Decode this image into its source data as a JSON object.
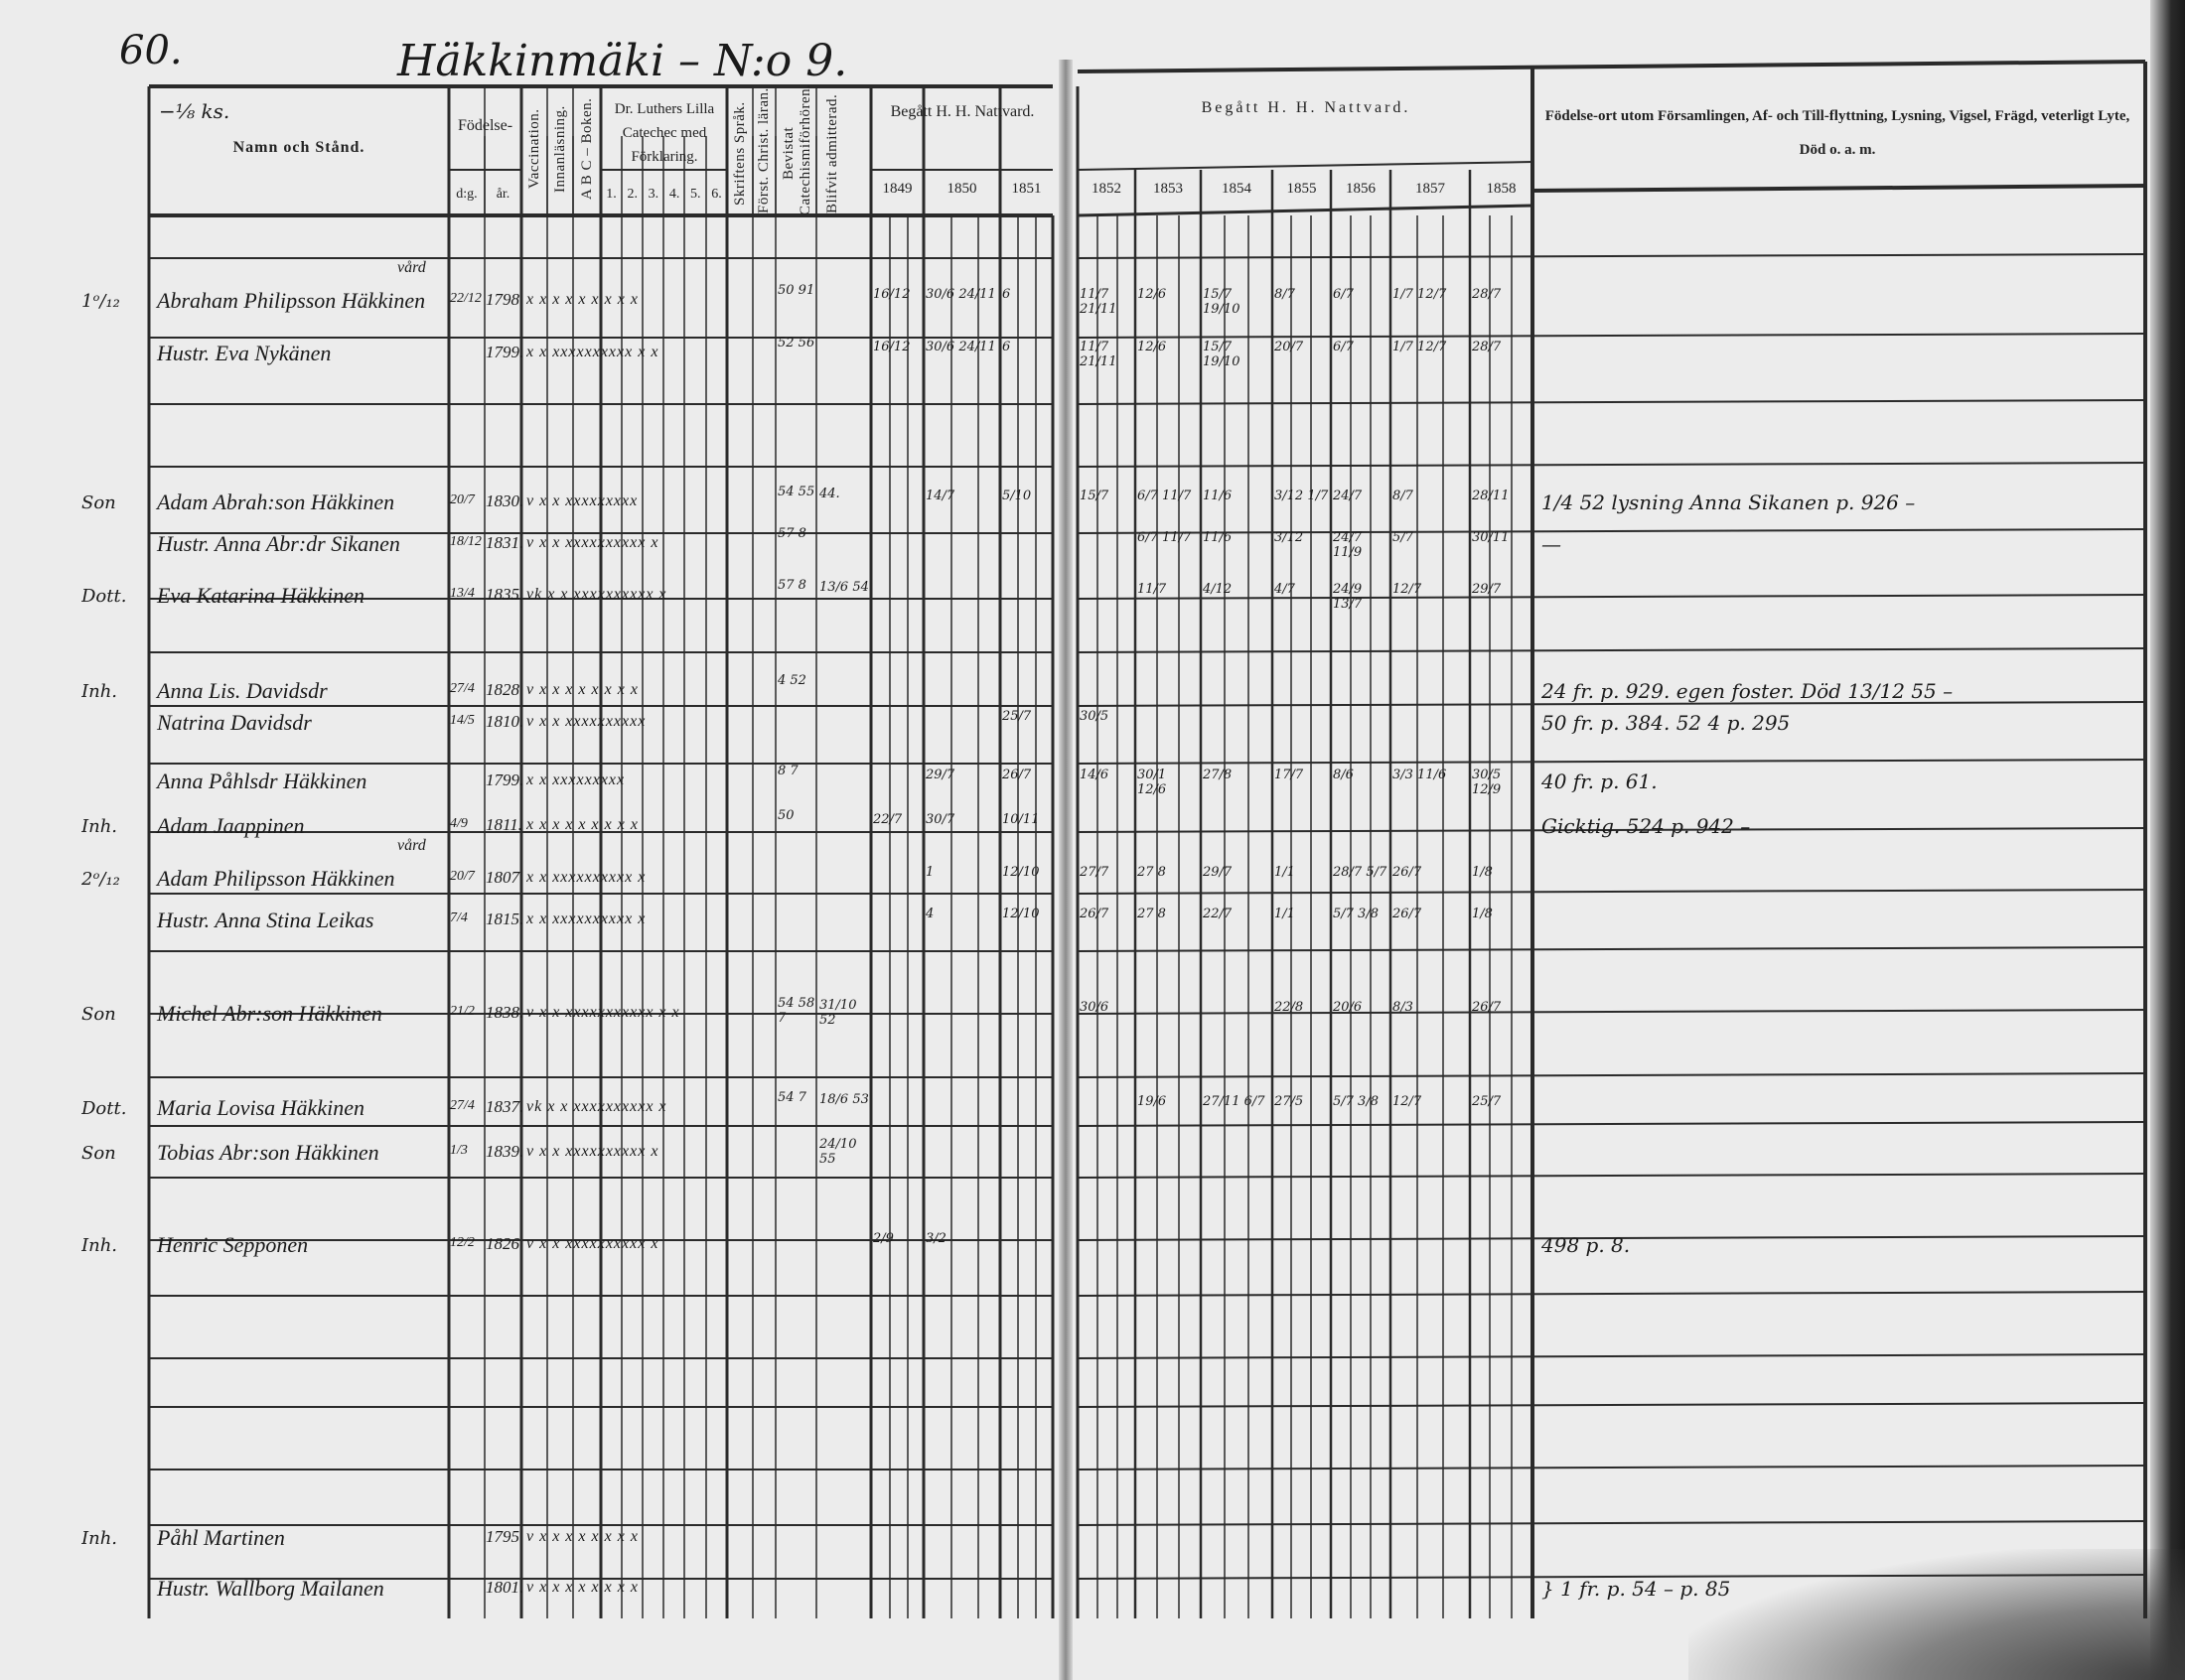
{
  "page_number": "60.",
  "title": "Häkkinmäki – N:o 9.",
  "share_note": "−⅛ ks.",
  "header": {
    "name_col": "Namn och Stånd.",
    "birth": "Födelse-",
    "birth_day": "d:g.",
    "birth_year": "år.",
    "vaccination": "Vaccination.",
    "innanlasning": "Innanläsning.",
    "abc": "A B C – Boken.",
    "catechism": "Dr. Luthers Lilla Catecheс med Förklaring.",
    "catechism_parts": [
      "1.",
      "2.",
      "3.",
      "4.",
      "5.",
      "6."
    ],
    "skriftens": "Skriftens Språk.",
    "forst": "Först. Christ. läran.",
    "bevistat": "Bevistat Catechismiförhören.",
    "blifvit": "Blifvit admitterad.",
    "communion_left": "Begått H. H. Nattvard.",
    "communion_right": "Begått H. H. Nattvard.",
    "years_left": [
      "1849",
      "1850",
      "1851"
    ],
    "years_right": [
      "1852",
      "1853",
      "1854",
      "1855",
      "1856",
      "1857",
      "1858"
    ],
    "remarks": "Födelse-ort utom Församlingen, Af- och Till-flyttning, Lysning, Vigsel, Frägd, veterligt Lyte, Död o. a. m."
  },
  "entries": [
    {
      "margin": "1ᵒ/₁₂",
      "above": "vård",
      "name": "Abraham Philipsson Häkkinen",
      "day": "22/12",
      "year": "1798",
      "marks": "x  x  x x x x x x  x",
      "exam": "50 91",
      "communion": {
        "1849": "16/12",
        "1850": "30/6  24/11",
        "1851": "6",
        "1852": "11/7 21/11",
        "1853": "12/6",
        "1854": "15/7 19/10",
        "1855": "8/7",
        "1856": "6/7",
        "1857": "1/7 12/7",
        "1858": "28/7"
      }
    },
    {
      "margin": "",
      "name": "Hustr. Eva Nykänen",
      "year": "1799.",
      "marks": "x  x xxxxxxxxxx x  x",
      "exam": "52 56",
      "communion": {
        "1849": "16/12",
        "1850": "30/6  24/11",
        "1851": "6",
        "1852": "11/7 21/11",
        "1853": "12/6",
        "1854": "15/7 19/10",
        "1855": "20/7",
        "1856": "6/7",
        "1857": "1/7 12/7",
        "1858": "28/7"
      }
    },
    {
      "margin": "Son",
      "name": "Adam Abrah:son Häkkinen",
      "day": "20/7",
      "year": "1830.",
      "marks": "v x  x xxxxxxxxx",
      "exam": "54 55",
      "admitted": "44.",
      "communion": {
        "1850": "14/7",
        "1851": "5/10",
        "1852": "15/7",
        "1853": "6/7 11/7",
        "1854": "11/6",
        "1855": "3/12 1/7",
        "1856": "24/7",
        "1857": "8/7",
        "1858": "28/11"
      },
      "remark": "1/4 52 lysning Anna Sikanen p. 926 –"
    },
    {
      "margin": "",
      "name": "Hustr. Anna Abr:dr Sikanen",
      "day": "18/12",
      "year": "1831.",
      "marks": "v x  x xxxxxxxxxx  x",
      "exam": "57 8",
      "communion": {
        "1853": "6/7 11/7",
        "1854": "11/6",
        "1855": "3/12",
        "1856": "24/7 11/9",
        "1857": "5/7",
        "1858": "30/11"
      },
      "remark": "—"
    },
    {
      "margin": "Dott.",
      "name": "Eva Katarina Häkkinen",
      "day": "13/4",
      "year": "1835.",
      "marks": "vk x  x xxxxxxxxxx  x",
      "exam": "57 8",
      "admitted": "13/6 54",
      "communion": {
        "1853": "11/7",
        "1854": "4/12",
        "1855": "4/7",
        "1856": "24/9 13/7",
        "1857": "12/7",
        "1858": "29/7"
      }
    },
    {
      "margin": "Inh.",
      "name": "Anna Lis. Davidsdr",
      "day": "27/4",
      "year": "1828",
      "marks": "v x x x x x x x x",
      "exam": "4 52",
      "remark": "24 fr. p. 929. egen foster. Död 13/12 55 –"
    },
    {
      "margin": "",
      "name": "Natrina Davidsdr",
      "day": "14/5",
      "year": "1810.",
      "marks": "v x  x xxxxxxxxxx",
      "communion": {
        "1851": "25/7",
        "1852": "30/5"
      },
      "remark": "50 fr. p. 384. 52 4 p. 295"
    },
    {
      "margin": "",
      "name": "Anna Påhlsdr Häkkinen",
      "year": "1799.",
      "marks": "x  x xxxxxxxxx",
      "exam": "8 7",
      "communion": {
        "1850": "29/7",
        "1851": "26/7",
        "1852": "14/6",
        "1853": "30/1 12/6",
        "1854": "27/8",
        "1855": "17/7",
        "1856": "8/6",
        "1857": "3/3 11/6",
        "1858": "30/5 12/9"
      },
      "remark": "40 fr. p. 61."
    },
    {
      "margin": "Inh.",
      "name": "Adam Jaappinen",
      "day": "4/9",
      "year": "1811.",
      "marks": "x  x  x x x x x x  x",
      "exam": "50",
      "communion": {
        "1849": "22/7",
        "1850": "30/7",
        "1851": "10/11"
      },
      "remark": "Gicktig.  524 p. 942 –"
    },
    {
      "margin": "2ᵒ/₁₂",
      "above": "vård",
      "name": "Adam Philipsson Häkkinen",
      "day": "20/7",
      "year": "1807",
      "marks": "x  x xxxxxxxxxx  x",
      "communion": {
        "1850": "1",
        "1851": "12/10",
        "1852": "27/7",
        "1853": "27 8",
        "1854": "29/7",
        "1855": "1/1",
        "1856": "28/7 5/7",
        "1857": "26/7",
        "1858": "1/8"
      }
    },
    {
      "margin": "",
      "name": "Hustr. Anna Stina Leikas",
      "day": "7/4",
      "year": "1815.",
      "marks": "x  x xxxxxxxxxx  x",
      "communion": {
        "1850": "4",
        "1851": "12/10",
        "1852": "26/7",
        "1853": "27 8",
        "1854": "22/7",
        "1855": "1/1",
        "1856": "5/7 3/8",
        "1857": "26/7",
        "1858": "1/8"
      }
    },
    {
      "margin": "Son",
      "name": "Michel Abr:son Häkkinen",
      "day": "21/2",
      "year": "1838.",
      "marks": "v x  x xxxxxxxxxxx x  x",
      "exam": "54 58 7",
      "admitted": "31/10 52",
      "communion": {
        "1852": "30/6",
        "1855": "22/8",
        "1856": "20/6",
        "1857": "8/3",
        "1858": "26/7"
      }
    },
    {
      "margin": "Dott.",
      "name": "Maria Lovisa Häkkinen",
      "day": "27/4",
      "year": "1837.",
      "marks": "vk x  x xxxxxxxxxx  x",
      "exam": "54 7",
      "admitted": "18/6 53",
      "communion": {
        "1853": "19/6",
        "1854": "27/11 6/7",
        "1855": "27/5",
        "1856": "5/7 3/8",
        "1857": "12/7",
        "1858": "25/7"
      }
    },
    {
      "margin": "Son",
      "name": "Tobias Abr:son Häkkinen",
      "day": "1/3",
      "year": "1839.",
      "marks": "v x  x xxxxxxxxxx  x",
      "admitted": "24/10 55"
    },
    {
      "margin": "Inh.",
      "name": "Henric Sepponen",
      "day": "12/2",
      "year": "1826",
      "marks": "v x  x xxxxxxxxxx  x",
      "communion": {
        "1849": "2/9",
        "1850": "3/2"
      },
      "remark": "498 p. 8."
    },
    {
      "margin": "Inh.",
      "name": "Påhl Martinen",
      "year": "1795",
      "marks": "v x x x x x x x x"
    },
    {
      "margin": "",
      "name": "Hustr. Wallborg Mailanen",
      "year": "1801.",
      "marks": "v x x x x x x x x",
      "remark": "} 1 fr. p. 54 – p. 85"
    }
  ],
  "colors": {
    "paper": "#ececec",
    "ink": "#1c1c1c",
    "rule": "#2a2a2a"
  }
}
